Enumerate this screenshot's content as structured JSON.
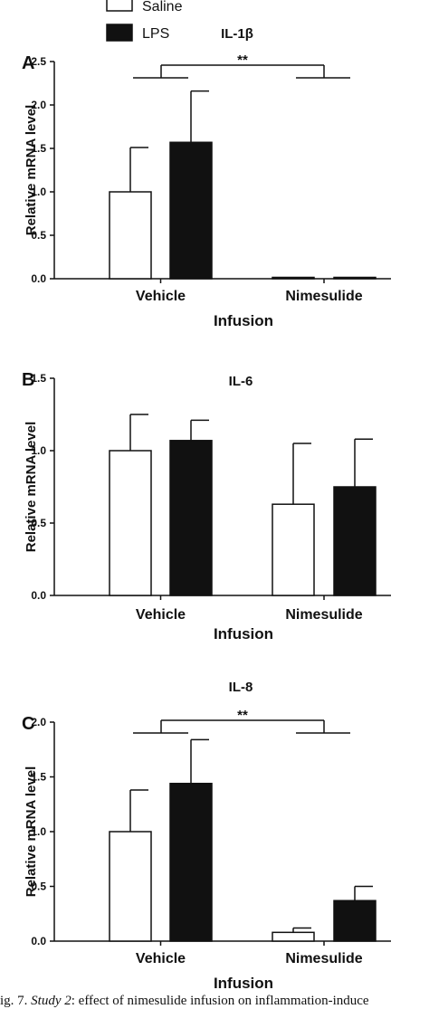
{
  "legend": [
    {
      "label": "Saline",
      "color": "#ffffff"
    },
    {
      "label": "LPS",
      "color": "#111111"
    }
  ],
  "colors": {
    "saline": "#ffffff",
    "lps": "#111111",
    "axis": "#111111"
  },
  "chart_data": [
    {
      "type": "bar",
      "panel": "A",
      "title": "IL-1β",
      "xlabel": "Infusion",
      "ylabel": "Relative mRNA level",
      "categories": [
        "Vehicle",
        "Nimesulide"
      ],
      "series": [
        {
          "name": "Saline",
          "values": [
            1.0,
            0.01
          ],
          "errors": [
            0.51,
            0.0
          ]
        },
        {
          "name": "LPS",
          "values": [
            1.57,
            0.01
          ],
          "errors": [
            0.59,
            0.0
          ]
        }
      ],
      "ylim": [
        0,
        2.5
      ],
      "yticks": [
        "0.0",
        "0.5",
        "1.0",
        "1.5",
        "2.0",
        "2.5"
      ],
      "annotation": "**"
    },
    {
      "type": "bar",
      "panel": "B",
      "title": "IL-6",
      "xlabel": "Infusion",
      "ylabel": "Relative mRNA level",
      "categories": [
        "Vehicle",
        "Nimesulide"
      ],
      "series": [
        {
          "name": "Saline",
          "values": [
            1.0,
            0.63
          ],
          "errors": [
            0.25,
            0.42
          ]
        },
        {
          "name": "LPS",
          "values": [
            1.07,
            0.75
          ],
          "errors": [
            0.14,
            0.33
          ]
        }
      ],
      "ylim": [
        0,
        1.5
      ],
      "yticks": [
        "0.0",
        "0.5",
        "1.0",
        "1.5"
      ],
      "annotation": ""
    },
    {
      "type": "bar",
      "panel": "C",
      "title": "IL-8",
      "xlabel": "Infusion",
      "ylabel": "Relative mRNA level",
      "categories": [
        "Vehicle",
        "Nimesulide"
      ],
      "series": [
        {
          "name": "Saline",
          "values": [
            1.0,
            0.08
          ],
          "errors": [
            0.38,
            0.04
          ]
        },
        {
          "name": "LPS",
          "values": [
            1.44,
            0.37
          ],
          "errors": [
            0.4,
            0.13
          ]
        }
      ],
      "ylim": [
        0,
        2.0
      ],
      "yticks": [
        "0.0",
        "0.5",
        "1.0",
        "1.5",
        "2.0"
      ],
      "annotation": "**"
    }
  ],
  "caption": {
    "prefix": "ig. 7. ",
    "italic": "Study 2",
    "text": ": effect of nimesulide infusion on inflammation-induce"
  }
}
